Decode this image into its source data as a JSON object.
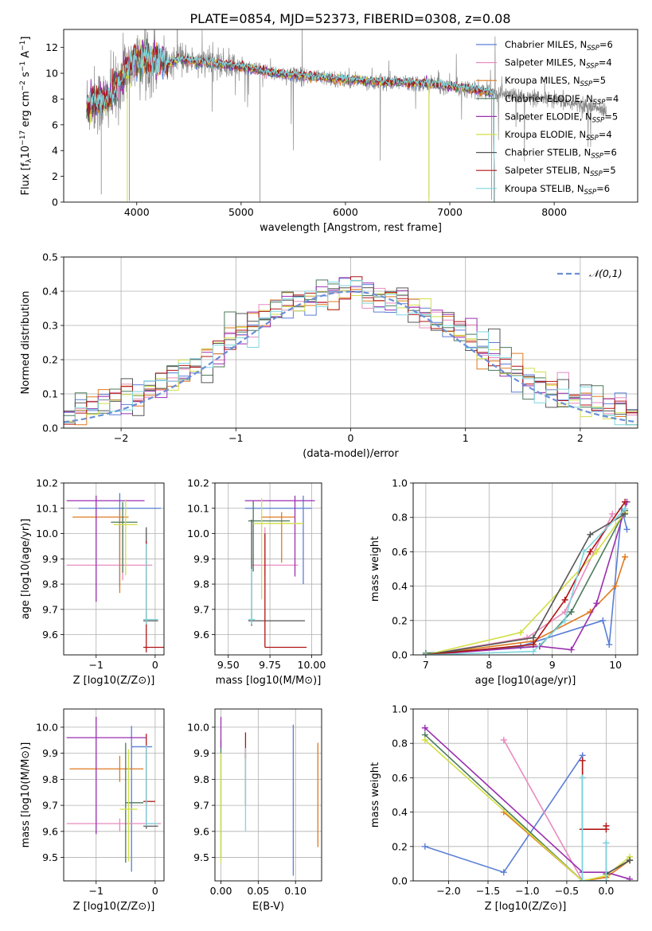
{
  "title": "PLATE=0854, MJD=52373, FIBERID=0308, z=0.08",
  "colors": {
    "chabrier_miles": "#5b7fd6",
    "salpeter_miles": "#e88bbf",
    "kroupa_miles": "#e07a1f",
    "chabrier_elodie": "#4a7a5a",
    "salpeter_elodie": "#9a2fb0",
    "kroupa_elodie": "#d2df45",
    "chabrier_stelib": "#555555",
    "salpeter_stelib": "#b01515",
    "kroupa_stelib": "#7fd6de",
    "data_grey": "#888888",
    "gauss": "#6b8fd6",
    "grid": "#b0b0b0"
  },
  "legend_spectrum": [
    {
      "name": "Chabrier MILES, N",
      "sub": "SSP",
      "tail": "=6",
      "color_key": "chabrier_miles"
    },
    {
      "name": "Salpeter MILES, N",
      "sub": "SSP",
      "tail": "=4",
      "color_key": "salpeter_miles"
    },
    {
      "name": "Kroupa MILES, N",
      "sub": "SSP",
      "tail": "=5",
      "color_key": "kroupa_miles"
    },
    {
      "name": "Chabrier ELODIE, N",
      "sub": "SSP",
      "tail": "=4",
      "color_key": "chabrier_elodie"
    },
    {
      "name": "Salpeter ELODIE, N",
      "sub": "SSP",
      "tail": "=5",
      "color_key": "salpeter_elodie"
    },
    {
      "name": "Kroupa ELODIE, N",
      "sub": "SSP",
      "tail": "=4",
      "color_key": "kroupa_elodie"
    },
    {
      "name": "Chabrier STELIB, N",
      "sub": "SSP",
      "tail": "=6",
      "color_key": "chabrier_stelib"
    },
    {
      "name": "Salpeter STELIB, N",
      "sub": "SSP",
      "tail": "=5",
      "color_key": "salpeter_stelib"
    },
    {
      "name": "Kroupa STELIB, N",
      "sub": "SSP",
      "tail": "=6",
      "color_key": "kroupa_stelib"
    }
  ],
  "chart_data": [
    {
      "id": "spectrum",
      "type": "line",
      "title": "PLATE=0854, MJD=52373, FIBERID=0308, z=0.08",
      "xlabel": "wavelength [Angstrom, rest frame]",
      "ylabel": "Flux [f_λ 10^-17 erg cm^-2 s^-1 A^-1]",
      "xlim": [
        3300,
        8800
      ],
      "ylim": [
        0,
        13.4
      ],
      "xticks": [
        4000,
        5000,
        6000,
        7000,
        8000
      ],
      "yticks": [
        0,
        2,
        4,
        6,
        8,
        10,
        12
      ],
      "legend": "right",
      "grid": false,
      "continuum": {
        "x": [
          3520,
          3600,
          3700,
          3800,
          3900,
          4000,
          4100,
          4200,
          4300,
          4400,
          4500,
          4700,
          5000,
          5300,
          5600,
          6000,
          6400,
          6800,
          7000,
          7200,
          7400,
          7600,
          7800,
          8000,
          8200,
          8400,
          8500
        ],
        "y": [
          7.6,
          7.9,
          7.8,
          8.8,
          10.2,
          11.0,
          11.3,
          11.1,
          10.7,
          11.1,
          11.0,
          10.8,
          10.5,
          10.0,
          9.8,
          9.5,
          9.3,
          9.2,
          9.0,
          8.8,
          8.5,
          8.3,
          8.0,
          7.9,
          7.6,
          7.3,
          7.1
        ]
      },
      "data_range": [
        3520,
        8500
      ],
      "model_range": [
        3520,
        7420
      ]
    },
    {
      "id": "residuals",
      "type": "line",
      "xlabel": "(data-model)/error",
      "ylabel": "Normed distribution",
      "xlim": [
        -2.5,
        2.5
      ],
      "ylim": [
        0,
        0.5
      ],
      "xticks": [
        -2,
        -1,
        0,
        1,
        2
      ],
      "yticks": [
        0.0,
        0.1,
        0.2,
        0.3,
        0.4,
        0.5
      ],
      "grid": true,
      "legend": "top-right",
      "gauss_label": "𝒩(0,1)",
      "bin_width": 0.1
    },
    {
      "id": "z_age",
      "type": "errorbar",
      "xlabel": "Z [log10(Z/Z⊙)]",
      "ylabel": "age [log10(age/yr)]",
      "xlim": [
        -1.55,
        0.15
      ],
      "ylim": [
        9.52,
        10.2
      ],
      "xticks": [
        -1,
        0
      ],
      "yticks": [
        9.6,
        9.7,
        9.8,
        9.9,
        10.0,
        10.1,
        10.2
      ],
      "grid": true,
      "points": [
        {
          "k": "chabrier_miles",
          "x": -0.6,
          "xerr": [
            0.7,
            0.7
          ],
          "y": 10.1,
          "yerr": [
            0.31,
            0.06
          ]
        },
        {
          "k": "salpeter_miles",
          "x": -0.55,
          "xerr": [
            0.95,
            0.5
          ],
          "y": 9.875,
          "yerr": [
            0.06,
            0.19
          ]
        },
        {
          "k": "kroupa_miles",
          "x": -0.6,
          "xerr": [
            0.8,
            0.15
          ],
          "y": 10.065,
          "yerr": [
            0.3,
            0.03
          ]
        },
        {
          "k": "chabrier_elodie",
          "x": -0.55,
          "xerr": [
            0.2,
            0.25
          ],
          "y": 10.045,
          "yerr": [
            0.2,
            0.08
          ]
        },
        {
          "k": "salpeter_elodie",
          "x": -1.0,
          "xerr": [
            0.5,
            0.82
          ],
          "y": 10.13,
          "yerr": [
            0.4,
            0.02
          ]
        },
        {
          "k": "kroupa_elodie",
          "x": -0.5,
          "xerr": [
            0.2,
            0.2
          ],
          "y": 10.035,
          "yerr": [
            0.2,
            0.1
          ]
        },
        {
          "k": "chabrier_stelib",
          "x": -0.15,
          "xerr": [
            0.05,
            0.2
          ],
          "y": 9.655,
          "yerr": [
            0.02,
            0.37
          ]
        },
        {
          "k": "salpeter_stelib",
          "x": -0.15,
          "xerr": [
            0.05,
            0.3
          ],
          "y": 9.55,
          "yerr": [
            0.02,
            0.42
          ]
        },
        {
          "k": "kroupa_stelib",
          "x": -0.15,
          "xerr": [
            0.05,
            0.2
          ],
          "y": 9.66,
          "yerr": [
            0.02,
            0.3
          ]
        }
      ]
    },
    {
      "id": "mass_age",
      "type": "errorbar",
      "xlabel": "mass [log10(M/M⊙)]",
      "ylabel": "",
      "xlim": [
        9.42,
        10.06
      ],
      "ylim": [
        9.52,
        10.2
      ],
      "xticks": [
        9.5,
        9.75,
        10.0
      ],
      "xticklabels": [
        "9.50",
        "9.75",
        "10.00"
      ],
      "yticks": [
        9.6,
        9.7,
        9.8,
        9.9,
        10.0,
        10.1,
        10.2
      ],
      "grid": true,
      "points": [
        {
          "k": "chabrier_miles",
          "x": 9.95,
          "xerr": [
            0.35,
            0.05
          ],
          "y": 10.1,
          "yerr": [
            0.3,
            0.05
          ]
        },
        {
          "k": "salpeter_miles",
          "x": 9.72,
          "xerr": [
            0.08,
            0.2
          ],
          "y": 9.875,
          "yerr": [
            0.04,
            0.15
          ]
        },
        {
          "k": "kroupa_miles",
          "x": 9.82,
          "xerr": [
            0.12,
            0.08
          ],
          "y": 10.065,
          "yerr": [
            0.18,
            0.02
          ]
        },
        {
          "k": "chabrier_elodie",
          "x": 9.65,
          "xerr": [
            0.03,
            0.22
          ],
          "y": 10.05,
          "yerr": [
            0.2,
            0.08
          ]
        },
        {
          "k": "salpeter_elodie",
          "x": 9.9,
          "xerr": [
            0.3,
            0.12
          ],
          "y": 10.13,
          "yerr": [
            0.3,
            0.02
          ]
        },
        {
          "k": "kroupa_elodie",
          "x": 9.7,
          "xerr": [
            0.05,
            0.25
          ],
          "y": 10.04,
          "yerr": [
            0.3,
            0.1
          ]
        },
        {
          "k": "chabrier_stelib",
          "x": 9.64,
          "xerr": [
            0.02,
            0.32
          ],
          "y": 9.655,
          "yerr": [
            0.02,
            0.4
          ]
        },
        {
          "k": "salpeter_stelib",
          "x": 9.72,
          "xerr": [
            0.0,
            0.25
          ],
          "y": 9.55,
          "yerr": [
            0.0,
            0.45
          ]
        },
        {
          "k": "kroupa_stelib",
          "x": 9.64,
          "xerr": [
            0.02,
            0.02
          ],
          "y": 9.66,
          "yerr": [
            0.02,
            0.2
          ]
        }
      ]
    },
    {
      "id": "age_weight",
      "type": "line",
      "xlabel": "age [log10(age/yr)]",
      "ylabel": "mass weight",
      "xlim": [
        6.8,
        10.35
      ],
      "ylim": [
        0,
        1
      ],
      "xticks": [
        7,
        8,
        9,
        10
      ],
      "yticks": [
        0.0,
        0.2,
        0.4,
        0.6,
        0.8,
        1.0
      ],
      "grid": true,
      "series": [
        {
          "k": "chabrier_miles",
          "x": [
            7.0,
            8.5,
            9.8,
            9.9,
            10.1,
            10.18
          ],
          "y": [
            0.0,
            0.05,
            0.2,
            0.06,
            0.85,
            0.73
          ]
        },
        {
          "k": "salpeter_miles",
          "x": [
            7.0,
            8.6,
            9.2,
            9.95
          ],
          "y": [
            0.0,
            0.1,
            0.25,
            0.82
          ]
        },
        {
          "k": "kroupa_miles",
          "x": [
            7.0,
            8.7,
            9.6,
            10.0,
            10.15
          ],
          "y": [
            0.0,
            0.08,
            0.25,
            0.4,
            0.57
          ]
        },
        {
          "k": "chabrier_elodie",
          "x": [
            7.0,
            8.8,
            9.3,
            10.15
          ],
          "y": [
            0.01,
            0.05,
            0.25,
            0.84
          ]
        },
        {
          "k": "salpeter_elodie",
          "x": [
            7.0,
            8.8,
            9.3,
            9.7,
            10.18
          ],
          "y": [
            0.0,
            0.05,
            0.03,
            0.3,
            0.89
          ]
        },
        {
          "k": "kroupa_elodie",
          "x": [
            7.0,
            8.5,
            9.7,
            10.15
          ],
          "y": [
            0.0,
            0.13,
            0.6,
            0.83
          ]
        },
        {
          "k": "chabrier_stelib",
          "x": [
            7.0,
            8.7,
            9.6,
            10.15
          ],
          "y": [
            0.0,
            0.1,
            0.7,
            0.82
          ]
        },
        {
          "k": "salpeter_stelib",
          "x": [
            7.0,
            8.7,
            9.2,
            9.6,
            10.15
          ],
          "y": [
            0.0,
            0.06,
            0.32,
            0.6,
            0.89
          ]
        },
        {
          "k": "kroupa_stelib",
          "x": [
            7.0,
            8.7,
            9.2,
            9.5,
            10.15
          ],
          "y": [
            0.0,
            0.02,
            0.2,
            0.6,
            0.85
          ]
        }
      ]
    },
    {
      "id": "z_mass",
      "type": "errorbar",
      "xlabel": "Z [log10(Z/Z⊙)]",
      "ylabel": "mass [log10(M/M⊙)]",
      "xlim": [
        -1.55,
        0.15
      ],
      "ylim": [
        9.41,
        10.07
      ],
      "xticks": [
        -1,
        0
      ],
      "yticks": [
        9.5,
        9.6,
        9.7,
        9.8,
        9.9,
        10.0
      ],
      "grid": true,
      "points": [
        {
          "k": "chabrier_miles",
          "x": -0.4,
          "xerr": [
            0.0,
            0.35
          ],
          "y": 9.925,
          "yerr": [
            0.48,
            0.08
          ]
        },
        {
          "k": "salpeter_miles",
          "x": -0.6,
          "xerr": [
            0.9,
            0.7
          ],
          "y": 9.63,
          "yerr": [
            0.03,
            0.02
          ]
        },
        {
          "k": "kroupa_miles",
          "x": -0.6,
          "xerr": [
            0.85,
            0.4
          ],
          "y": 9.84,
          "yerr": [
            0.05,
            0.05
          ]
        },
        {
          "k": "chabrier_elodie",
          "x": -0.5,
          "xerr": [
            0.0,
            0.3
          ],
          "y": 9.71,
          "yerr": [
            0.23,
            0.23
          ]
        },
        {
          "k": "salpeter_elodie",
          "x": -1.0,
          "xerr": [
            0.5,
            0.85
          ],
          "y": 9.96,
          "yerr": [
            0.37,
            0.08
          ]
        },
        {
          "k": "kroupa_elodie",
          "x": -0.45,
          "xerr": [
            0.15,
            0.15
          ],
          "y": 9.685,
          "yerr": [
            0.2,
            0.23
          ]
        },
        {
          "k": "chabrier_stelib",
          "x": -0.15,
          "xerr": [
            0.05,
            0.2
          ],
          "y": 9.62,
          "yerr": [
            0.01,
            0.3
          ]
        },
        {
          "k": "salpeter_stelib",
          "x": -0.15,
          "xerr": [
            0.05,
            0.15
          ],
          "y": 9.715,
          "yerr": [
            0.02,
            0.26
          ]
        },
        {
          "k": "kroupa_stelib",
          "x": -0.15,
          "xerr": [
            0.0,
            0.2
          ],
          "y": 9.63,
          "yerr": [
            0.01,
            0.3
          ]
        }
      ]
    },
    {
      "id": "ebv_mass",
      "type": "errorbar",
      "xlabel": "E(B-V)",
      "ylabel": "",
      "xlim": [
        -0.008,
        0.135
      ],
      "ylim": [
        9.41,
        10.07
      ],
      "xticks": [
        0.0,
        0.05,
        0.1
      ],
      "xticklabels": [
        "0.00",
        "0.05",
        "0.10"
      ],
      "yticks": [
        9.5,
        9.6,
        9.7,
        9.8,
        9.9,
        10.0
      ],
      "grid": true,
      "points": [
        {
          "k": "chabrier_miles",
          "x": 0.097,
          "xerr": [
            0,
            0
          ],
          "y": 9.7,
          "yerr": [
            0.27,
            0.31
          ]
        },
        {
          "k": "salpeter_miles",
          "x": 0.033,
          "xerr": [
            0,
            0
          ],
          "y": 9.9,
          "yerr": [
            0.02,
            0.02
          ]
        },
        {
          "k": "kroupa_miles",
          "x": 0.13,
          "xerr": [
            0,
            0
          ],
          "y": 9.75,
          "yerr": [
            0.21,
            0.19
          ]
        },
        {
          "k": "chabrier_elodie",
          "x": 0.0,
          "xerr": [
            0,
            0
          ],
          "y": 9.7,
          "yerr": [
            0.2,
            0.25
          ]
        },
        {
          "k": "salpeter_elodie",
          "x": 0.0,
          "xerr": [
            0,
            0
          ],
          "y": 9.97,
          "yerr": [
            0.05,
            0.07
          ]
        },
        {
          "k": "kroupa_elodie",
          "x": 0.0,
          "xerr": [
            0,
            0
          ],
          "y": 9.7,
          "yerr": [
            0.22,
            0.2
          ]
        },
        {
          "k": "chabrier_stelib",
          "x": 0.033,
          "xerr": [
            0,
            0
          ],
          "y": 9.8,
          "yerr": [
            0.1,
            0.1
          ]
        },
        {
          "k": "salpeter_stelib",
          "x": 0.033,
          "xerr": [
            0,
            0
          ],
          "y": 9.9,
          "yerr": [
            0.02,
            0.08
          ]
        },
        {
          "k": "kroupa_stelib",
          "x": 0.033,
          "xerr": [
            0,
            0
          ],
          "y": 9.75,
          "yerr": [
            0.15,
            0.17
          ]
        }
      ]
    },
    {
      "id": "z_weight",
      "type": "line",
      "xlabel": "Z [log10(Z/Z⊙)]",
      "ylabel": "mass weight",
      "xlim": [
        -2.45,
        0.4
      ],
      "ylim": [
        0,
        1
      ],
      "xticks": [
        -2.0,
        -1.5,
        -1.0,
        -0.5,
        0.0
      ],
      "xticklabels": [
        "−2.0",
        "−1.5",
        "−1.0",
        "−0.5",
        "0.0"
      ],
      "yticks": [
        0.0,
        0.2,
        0.4,
        0.6,
        0.8,
        1.0
      ],
      "grid": true,
      "series": [
        {
          "k": "chabrier_miles",
          "x": [
            -2.3,
            -1.3,
            -0.3,
            -0.3,
            0.0,
            0.0
          ],
          "y": [
            0.2,
            0.05,
            0.73,
            0.0,
            0.0,
            0.22
          ]
        },
        {
          "k": "salpeter_miles",
          "x": [
            -1.3,
            -0.3,
            0.0,
            0.0
          ],
          "y": [
            0.82,
            0.0,
            0.0,
            0.05
          ]
        },
        {
          "k": "kroupa_miles",
          "x": [
            -1.3,
            -0.3,
            0.0,
            0.3
          ],
          "y": [
            0.4,
            0.0,
            0.02,
            0.12
          ]
        },
        {
          "k": "chabrier_elodie",
          "x": [
            -2.3,
            -0.3,
            0.0,
            0.0,
            0.3
          ],
          "y": [
            0.85,
            0.0,
            0.0,
            0.04,
            0.12
          ]
        },
        {
          "k": "salpeter_elodie",
          "x": [
            -2.3,
            -0.3,
            0.0,
            0.3
          ],
          "y": [
            0.89,
            0.05,
            0.05,
            0.01
          ]
        },
        {
          "k": "kroupa_elodie",
          "x": [
            -2.3,
            -0.3,
            0.0,
            0.3
          ],
          "y": [
            0.82,
            0.0,
            0.03,
            0.14
          ]
        },
        {
          "k": "chabrier_stelib",
          "x": [
            -0.3,
            -0.3,
            0.0,
            0.0,
            0.3
          ],
          "y": [
            0.6,
            0.0,
            0.0,
            0.04,
            0.12
          ]
        },
        {
          "k": "salpeter_stelib",
          "x": [
            -0.3,
            -0.3,
            0.0,
            0.0
          ],
          "y": [
            0.7,
            0.3,
            0.3,
            0.32
          ]
        },
        {
          "k": "kroupa_stelib",
          "x": [
            -0.3,
            -0.3,
            0.0,
            0.0
          ],
          "y": [
            0.6,
            0.0,
            0.0,
            0.22
          ]
        }
      ]
    }
  ]
}
